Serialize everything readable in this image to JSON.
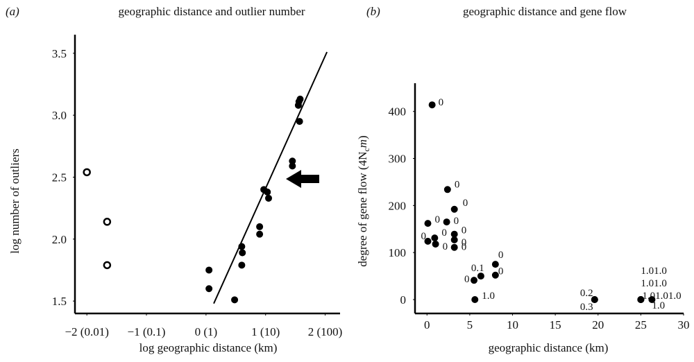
{
  "chart_data": [
    {
      "type": "scatter",
      "panel": "(a)",
      "title": "geographic distance and outlier number",
      "x_label": "log geographic distance (km)",
      "y_label": "log number of outliers",
      "xlim": [
        -2.2,
        2.25
      ],
      "ylim": [
        1.4,
        3.65
      ],
      "xticks": [
        {
          "value": -2,
          "label": "−2 (0.01)"
        },
        {
          "value": -1,
          "label": "−1 (0.1)"
        },
        {
          "value": 0,
          "label": "0 (1)"
        },
        {
          "value": 1,
          "label": "1 (10)"
        },
        {
          "value": 2,
          "label": "2 (100)"
        }
      ],
      "yticks": [
        1.5,
        {
          "value": 2,
          "label": "2.0"
        },
        2.5,
        {
          "value": 3,
          "label": "3.0"
        },
        3.5
      ],
      "series": [
        {
          "marker": "open",
          "color": "#000000",
          "x": [
            -2.0,
            -1.66,
            -1.66
          ],
          "y": [
            2.54,
            2.14,
            1.79
          ]
        },
        {
          "marker": "filled",
          "color": "#000000",
          "x": [
            0.05,
            0.05,
            0.48,
            0.6,
            0.61,
            0.6,
            0.9,
            0.9,
            0.97,
            1.03,
            1.05,
            1.45,
            1.45,
            1.56,
            1.58,
            1.55,
            1.57
          ],
          "y": [
            1.75,
            1.6,
            1.51,
            1.94,
            1.89,
            1.79,
            2.1,
            2.04,
            2.4,
            2.38,
            2.33,
            2.63,
            2.59,
            3.11,
            3.13,
            3.08,
            2.95
          ]
        }
      ],
      "fit_line": {
        "x": [
          0.13,
          2.03
        ],
        "y": [
          1.48,
          3.51
        ]
      }
    },
    {
      "type": "scatter",
      "panel": "(b)",
      "title": "geographic distance and gene flow",
      "x_label": "geographic distance (km)",
      "y_label": {
        "text": "degree of gene flow (4N",
        "sub": "c",
        "var": "m",
        "end": ")"
      },
      "xlim": [
        -1.4,
        30
      ],
      "ylim": [
        -29.5,
        460
      ],
      "xticks": [
        0,
        5,
        10,
        15,
        20,
        25,
        30
      ],
      "yticks": [
        0,
        100,
        200,
        300,
        400
      ],
      "series": [
        {
          "marker": "filled",
          "color": "#000000",
          "x": [
            0.6,
            2.4,
            3.2,
            0.1,
            2.3,
            3.2,
            3.2,
            3.2,
            0.9,
            0.1,
            1.0,
            5.5,
            6.3,
            8.0,
            8.0,
            5.6,
            19.6,
            19.6,
            25.0,
            25.0,
            25.0,
            26.3
          ],
          "y": [
            414,
            234,
            192,
            162,
            165,
            139,
            127,
            111,
            131,
            124,
            118,
            41,
            50,
            75,
            52,
            0,
            0,
            0,
            0,
            0,
            0,
            0
          ],
          "labels": [
            "0",
            "0",
            "0",
            "0",
            "0",
            "0",
            "0",
            "0",
            "0",
            "0",
            "0",
            "0",
            "0.1",
            "0",
            "0",
            "1.0",
            "0.2",
            "0.3",
            "1.01.0",
            "1.01.0",
            "1.01.01.0",
            "1.0"
          ]
        }
      ]
    }
  ]
}
